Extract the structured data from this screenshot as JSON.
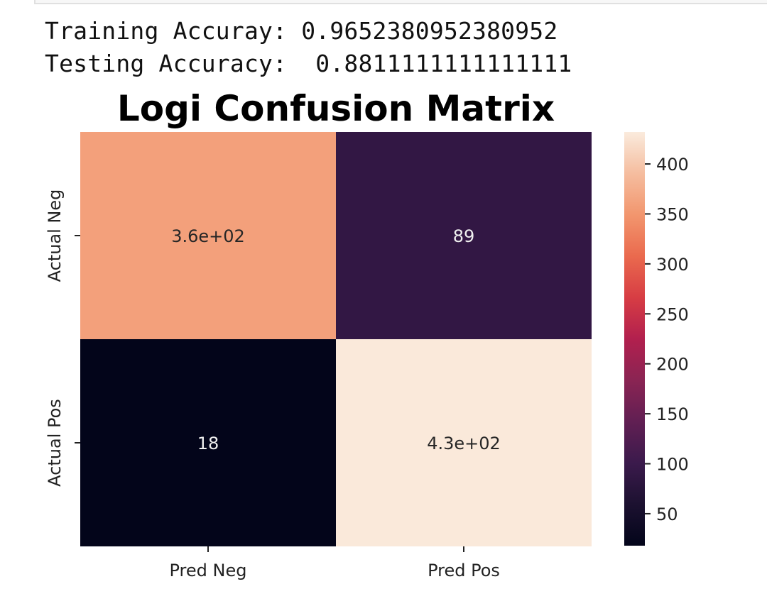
{
  "output": {
    "train_line": "Training Accuray: 0.9652380952380952",
    "test_line": "Testing Accuracy:  0.8811111111111111"
  },
  "chart_data": {
    "type": "heatmap",
    "title": "Logi Confusion Matrix",
    "x_tick_labels": [
      "Pred Neg",
      "Pred Pos"
    ],
    "y_tick_labels": [
      "Actual Neg",
      "Actual Pos"
    ],
    "values": [
      [
        360,
        89
      ],
      [
        18,
        430
      ]
    ],
    "annotations": [
      [
        "3.6e+02",
        "89"
      ],
      [
        "18",
        "4.3e+02"
      ]
    ],
    "colormap": "rocket",
    "colorbar": {
      "range": [
        18,
        432
      ],
      "ticks": [
        50,
        100,
        150,
        200,
        250,
        300,
        350,
        400
      ],
      "tick_labels": [
        "50",
        "100",
        "150",
        "200",
        "250",
        "300",
        "350",
        "400"
      ]
    }
  }
}
